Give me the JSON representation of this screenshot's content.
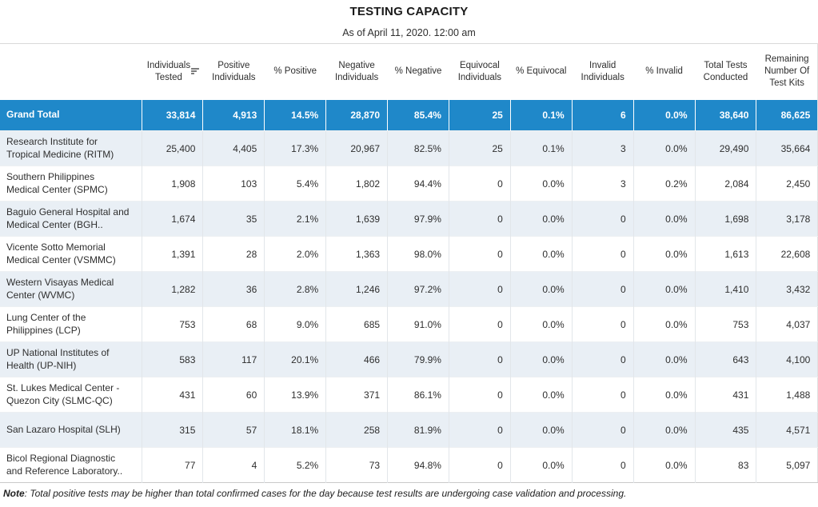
{
  "title": "TESTING CAPACITY",
  "subtitle": "As of April 11, 2020. 12:00 am",
  "note": {
    "prefix": "Note",
    "text": ": Total positive tests may be higher than total confirmed cases for the day because test results are undergoing case validation and processing."
  },
  "colors": {
    "grand_total_row_bg": "#1f88c9",
    "banded_row_bg": "#e9eff5",
    "plain_row_bg": "#ffffff",
    "grand_total_text": "#ffffff",
    "body_text": "#2e2e2e",
    "gridline": "#e2e6ea"
  },
  "icons": {
    "sort": "sort-descending-icon"
  },
  "chart_data": {
    "type": "table",
    "title": "TESTING CAPACITY",
    "subtitle": "As of April 11, 2020. 12:00 am",
    "columns": [
      "",
      "Individuals Tested",
      "Positive Individuals",
      "% Positive",
      "Negative Individuals",
      "% Negative",
      "Equivocal Individuals",
      "% Equivocal",
      "Invalid Individuals",
      "% Invalid",
      "Total Tests Conducted",
      "Remaining Number Of Test Kits"
    ],
    "sorted_column": "Individuals Tested",
    "rows": [
      {
        "label": "Grand Total",
        "is_total": true,
        "values": [
          "33,814",
          "4,913",
          "14.5%",
          "28,870",
          "85.4%",
          "25",
          "0.1%",
          "6",
          "0.0%",
          "38,640",
          "86,625"
        ]
      },
      {
        "label": "Research Institute for Tropical Medicine (RITM)",
        "values": [
          "25,400",
          "4,405",
          "17.3%",
          "20,967",
          "82.5%",
          "25",
          "0.1%",
          "3",
          "0.0%",
          "29,490",
          "35,664"
        ]
      },
      {
        "label": "Southern Philippines Medical Center (SPMC)",
        "values": [
          "1,908",
          "103",
          "5.4%",
          "1,802",
          "94.4%",
          "0",
          "0.0%",
          "3",
          "0.2%",
          "2,084",
          "2,450"
        ]
      },
      {
        "label": "Baguio General Hospital and Medical Center (BGH..",
        "values": [
          "1,674",
          "35",
          "2.1%",
          "1,639",
          "97.9%",
          "0",
          "0.0%",
          "0",
          "0.0%",
          "1,698",
          "3,178"
        ]
      },
      {
        "label": "Vicente Sotto Memorial Medical Center (VSMMC)",
        "values": [
          "1,391",
          "28",
          "2.0%",
          "1,363",
          "98.0%",
          "0",
          "0.0%",
          "0",
          "0.0%",
          "1,613",
          "22,608"
        ]
      },
      {
        "label": "Western Visayas Medical Center (WVMC)",
        "values": [
          "1,282",
          "36",
          "2.8%",
          "1,246",
          "97.2%",
          "0",
          "0.0%",
          "0",
          "0.0%",
          "1,410",
          "3,432"
        ]
      },
      {
        "label": "Lung Center of the Philippines (LCP)",
        "values": [
          "753",
          "68",
          "9.0%",
          "685",
          "91.0%",
          "0",
          "0.0%",
          "0",
          "0.0%",
          "753",
          "4,037"
        ]
      },
      {
        "label": "UP National Institutes of Health (UP-NIH)",
        "values": [
          "583",
          "117",
          "20.1%",
          "466",
          "79.9%",
          "0",
          "0.0%",
          "0",
          "0.0%",
          "643",
          "4,100"
        ]
      },
      {
        "label": "St. Lukes Medical Center - Quezon City (SLMC-QC)",
        "values": [
          "431",
          "60",
          "13.9%",
          "371",
          "86.1%",
          "0",
          "0.0%",
          "0",
          "0.0%",
          "431",
          "1,488"
        ]
      },
      {
        "label": "San Lazaro Hospital (SLH)",
        "values": [
          "315",
          "57",
          "18.1%",
          "258",
          "81.9%",
          "0",
          "0.0%",
          "0",
          "0.0%",
          "435",
          "4,571"
        ]
      },
      {
        "label": "Bicol Regional Diagnostic and Reference Laboratory..",
        "values": [
          "77",
          "4",
          "5.2%",
          "73",
          "94.8%",
          "0",
          "0.0%",
          "0",
          "0.0%",
          "83",
          "5,097"
        ]
      }
    ]
  }
}
